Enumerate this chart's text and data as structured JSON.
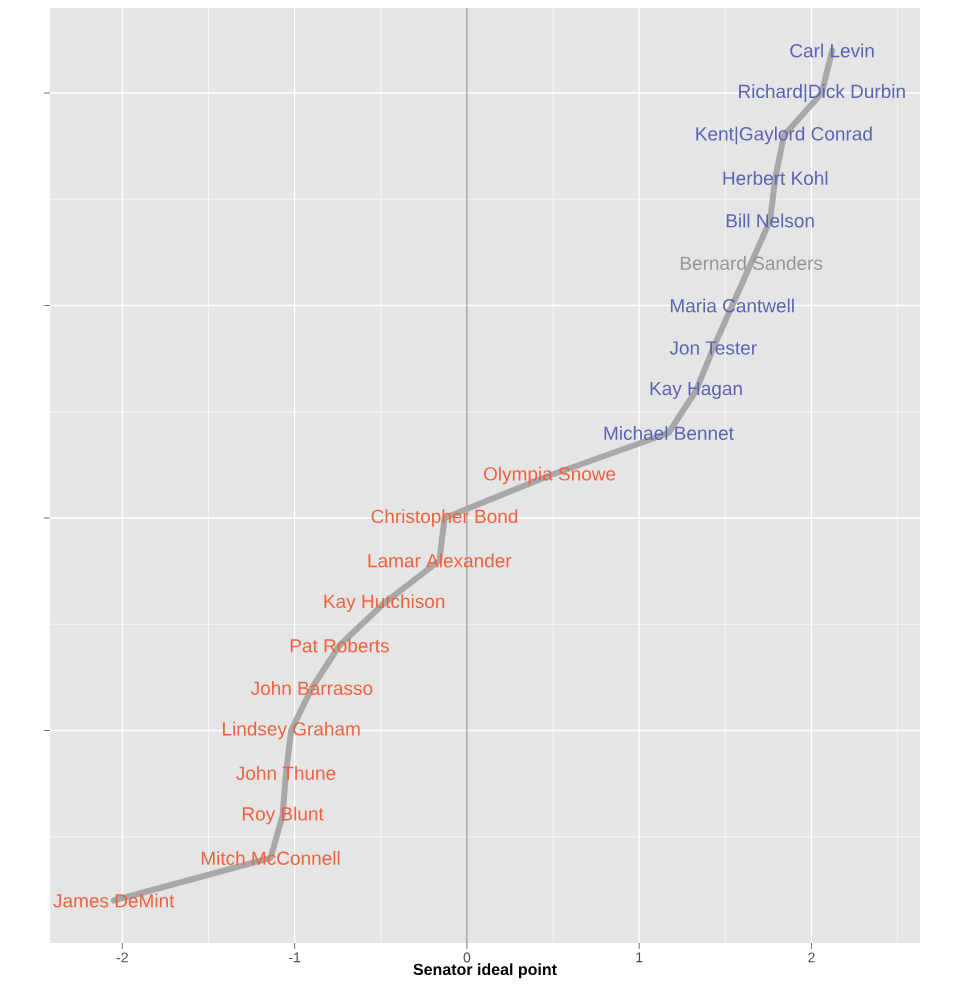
{
  "chart_data": {
    "type": "line",
    "orientation": "horizontal",
    "xlabel": "Senator ideal point",
    "categories": [
      "Carl Levin",
      "Richard|Dick Durbin",
      "Kent|Gaylord Conrad",
      "Herbert Kohl",
      "Bill Nelson",
      "Bernard Sanders",
      "Maria Cantwell",
      "Jon Tester",
      "Kay Hagan",
      "Michael Bennet",
      "Olympia Snowe",
      "Christopher Bond",
      "Lamar Alexander",
      "Kay Hutchison",
      "Pat Roberts",
      "John Barrasso",
      "Lindsey Graham",
      "John Thune",
      "Roy Blunt",
      "Mitch McConnell",
      "James DeMint"
    ],
    "values": [
      2.12,
      2.06,
      1.84,
      1.79,
      1.76,
      1.65,
      1.54,
      1.43,
      1.33,
      1.17,
      0.48,
      -0.13,
      -0.16,
      -0.48,
      -0.74,
      -0.9,
      -1.02,
      -1.05,
      -1.07,
      -1.14,
      -2.05
    ],
    "color": "#a8a8a8",
    "colors": [
      "#5a64b4",
      "#5a64b4",
      "#5a64b4",
      "#5a64b4",
      "#5a64b4",
      "#959595",
      "#5a64b4",
      "#5a64b4",
      "#5a64b4",
      "#5a64b4",
      "#f0603c",
      "#f0603c",
      "#f0603c",
      "#f0603c",
      "#f0603c",
      "#f0603c",
      "#f0603c",
      "#f0603c",
      "#f0603c",
      "#f0603c",
      "#f0603c"
    ],
    "xlim": [
      -2.42,
      2.63
    ],
    "xticks": [
      -2,
      -1,
      0,
      1,
      2
    ],
    "ref_lines": [
      {
        "axis": "x",
        "value": 0,
        "color": "#7f7f7f"
      }
    ],
    "grid": true,
    "tick_labels": "x"
  }
}
